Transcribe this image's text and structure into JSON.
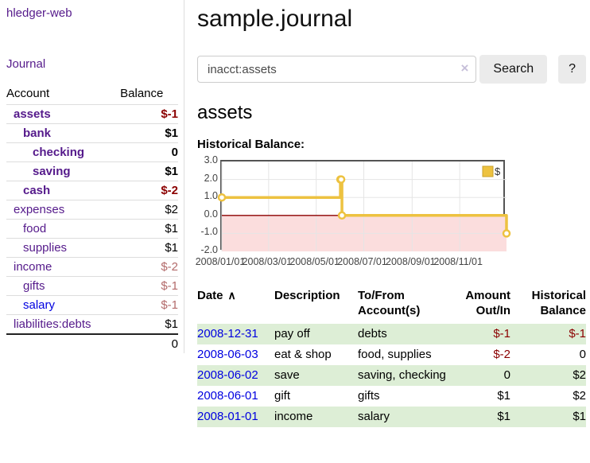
{
  "app": {
    "brand": "hledger-web",
    "nav_journal": "Journal"
  },
  "sidebar": {
    "columns": [
      "Account",
      "Balance"
    ],
    "accounts": [
      {
        "name": "assets",
        "balance": "$-1",
        "level": 1,
        "bold": true,
        "name_color": "purple",
        "balance_color": "dred"
      },
      {
        "name": "bank",
        "balance": "$1",
        "level": 2,
        "bold": true,
        "name_color": "purple",
        "balance_color": "black"
      },
      {
        "name": "checking",
        "balance": "0",
        "level": 3,
        "bold": true,
        "name_color": "purple",
        "balance_color": "black"
      },
      {
        "name": "saving",
        "balance": "$1",
        "level": 3,
        "bold": true,
        "name_color": "purple",
        "balance_color": "black"
      },
      {
        "name": "cash",
        "balance": "$-2",
        "level": 2,
        "bold": true,
        "name_color": "purple",
        "balance_color": "dred"
      },
      {
        "name": "expenses",
        "balance": "$2",
        "level": 1,
        "bold": false,
        "name_color": "purple",
        "balance_color": "black"
      },
      {
        "name": "food",
        "balance": "$1",
        "level": 2,
        "bold": false,
        "name_color": "purple",
        "balance_color": "black"
      },
      {
        "name": "supplies",
        "balance": "$1",
        "level": 2,
        "bold": false,
        "name_color": "purple",
        "balance_color": "black"
      },
      {
        "name": "income",
        "balance": "$-2",
        "level": 1,
        "bold": false,
        "name_color": "purple",
        "balance_color": "rose"
      },
      {
        "name": "gifts",
        "balance": "$-1",
        "level": 2,
        "bold": false,
        "name_color": "purple",
        "balance_color": "rose"
      },
      {
        "name": "salary",
        "balance": "$-1",
        "level": 2,
        "bold": false,
        "name_color": "blue",
        "balance_color": "rose"
      },
      {
        "name": "liabilities:debts",
        "balance": "$1",
        "level": 1,
        "bold": false,
        "name_color": "purple",
        "balance_color": "black"
      }
    ],
    "total": "0"
  },
  "header": {
    "title": "sample.journal"
  },
  "search": {
    "value": "inacct:assets",
    "clear_icon": "×",
    "button": "Search",
    "help_button": "?"
  },
  "account_page": {
    "heading": "assets",
    "chart_label": "Historical Balance:"
  },
  "chart_data": {
    "type": "line",
    "step": true,
    "title": "Historical Balance of assets",
    "xlim": [
      "2008-01-01",
      "2008-12-31"
    ],
    "ylim": [
      -2,
      3
    ],
    "legend": {
      "label": "$",
      "position": "top-right"
    },
    "series": [
      {
        "name": "$",
        "color": "#edc240",
        "points": [
          [
            "2008-01-01",
            1
          ],
          [
            "2008-06-01",
            2
          ],
          [
            "2008-06-02",
            2
          ],
          [
            "2008-06-03",
            0
          ],
          [
            "2008-12-31",
            -1
          ]
        ]
      }
    ],
    "y_ticks": [
      {
        "v": 3,
        "label": "3.0"
      },
      {
        "v": 2,
        "label": "2.0"
      },
      {
        "v": 1,
        "label": "1.0"
      },
      {
        "v": 0,
        "label": "0.0"
      },
      {
        "v": -1,
        "label": "-1.0"
      },
      {
        "v": -2,
        "label": "-2.0"
      }
    ],
    "x_ticks": [
      {
        "date": "2008-01-01",
        "label": "2008/01/01"
      },
      {
        "date": "2008-03-01",
        "label": "2008/03/01"
      },
      {
        "date": "2008-05-01",
        "label": "2008/05/01"
      },
      {
        "date": "2008-07-01",
        "label": "2008/07/01"
      },
      {
        "date": "2008-09-01",
        "label": "2008/09/01"
      },
      {
        "date": "2008-11-01",
        "label": "2008/11/01"
      }
    ],
    "grid": true,
    "below_zero_fill": "#fbdddd",
    "zero_line_color": "#8b0000",
    "grid_border_color": "#545454",
    "gridline_color": "#e5e5e5"
  },
  "register": {
    "columns": {
      "date": "Date",
      "description": "Description",
      "accounts": "To/From\nAccount(s)",
      "amount": "Amount\nOut/In",
      "balance": "Historical\nBalance"
    },
    "sort_arrow": "∧",
    "rows": [
      {
        "date": "2008-12-31",
        "description": "pay off",
        "accounts": "debts",
        "amount": "$-1",
        "amount_neg": true,
        "balance": "$-1",
        "balance_neg": true,
        "shaded": true
      },
      {
        "date": "2008-06-03",
        "description": "eat & shop",
        "accounts": "food, supplies",
        "amount": "$-2",
        "amount_neg": true,
        "balance": "0",
        "balance_neg": false,
        "shaded": false
      },
      {
        "date": "2008-06-02",
        "description": "save",
        "accounts": "saving, checking",
        "amount": "0",
        "amount_neg": false,
        "balance": "$2",
        "balance_neg": false,
        "shaded": true
      },
      {
        "date": "2008-06-01",
        "description": "gift",
        "accounts": "gifts",
        "amount": "$1",
        "amount_neg": false,
        "balance": "$2",
        "balance_neg": false,
        "shaded": false
      },
      {
        "date": "2008-01-01",
        "description": "income",
        "accounts": "salary",
        "amount": "$1",
        "amount_neg": false,
        "balance": "$1",
        "balance_neg": false,
        "shaded": true
      }
    ]
  },
  "colors": {
    "link_purple": "#551a8b",
    "link_blue": "#0000e0",
    "negative_dark_red": "#8b0000",
    "negative_rose": "#b36b6b",
    "row_green": "#ddeed6",
    "series_gold": "#edc240"
  }
}
